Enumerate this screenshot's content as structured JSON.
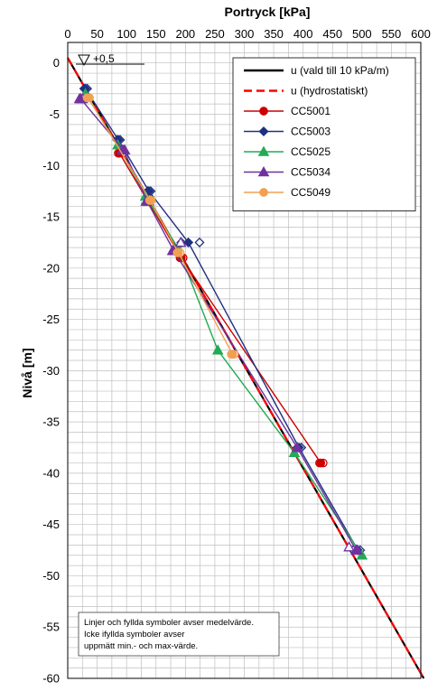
{
  "chart_data": {
    "type": "scatter",
    "title": "Portryck [kPa]",
    "xlabel": "Portryck [kPa]",
    "ylabel": "Nivå [m]",
    "xlim": [
      0,
      600
    ],
    "ylim": [
      -60,
      2
    ],
    "x_ticks": [
      0,
      50,
      100,
      150,
      200,
      250,
      300,
      350,
      400,
      450,
      500,
      550,
      600
    ],
    "y_ticks": [
      0,
      -5,
      -10,
      -15,
      -20,
      -25,
      -30,
      -35,
      -40,
      -45,
      -50,
      -55,
      -60
    ],
    "x_axis_position": "top",
    "grid": true,
    "legend_position": "top-right",
    "water_level_label": "+0,5",
    "note_lines": [
      "Linjer och fyllda symboler avser medelvärde.",
      "Icke ifyllda symboler avser",
      "uppmätt min.- och max-värde."
    ],
    "series": [
      {
        "name": "u (vald till 10 kPa/m)",
        "style": "solid",
        "color": "#000000",
        "marker": "none",
        "points": [
          [
            0,
            0.5
          ],
          [
            605,
            -60
          ]
        ]
      },
      {
        "name": "u (hydrostatiskt)",
        "style": "dashed",
        "color": "#ff0000",
        "marker": "none",
        "points": [
          [
            0,
            0.5
          ],
          [
            605,
            -60
          ]
        ]
      },
      {
        "name": "CC5001",
        "style": "solid",
        "color": "#cc0000",
        "marker": "circle",
        "points": [
          [
            88,
            -8.8
          ],
          [
            193,
            -19
          ],
          [
            430,
            -39
          ]
        ],
        "minmax": [
          [
            86,
            -8.8
          ],
          [
            93,
            -8.8
          ],
          [
            191,
            -19
          ],
          [
            196,
            -19
          ],
          [
            428,
            -39
          ],
          [
            434,
            -39
          ]
        ]
      },
      {
        "name": "CC5003",
        "style": "solid",
        "color": "#1f3080",
        "marker": "diamond",
        "points": [
          [
            30,
            -2.5
          ],
          [
            86,
            -7.5
          ],
          [
            138,
            -12.5
          ],
          [
            205,
            -17.5
          ],
          [
            393,
            -37.5
          ],
          [
            493,
            -47.5
          ]
        ],
        "minmax": [
          [
            28,
            -2.5
          ],
          [
            33,
            -2.5
          ],
          [
            84,
            -7.5
          ],
          [
            89,
            -7.5
          ],
          [
            136,
            -12.5
          ],
          [
            141,
            -12.5
          ],
          [
            193,
            -17.5
          ],
          [
            224,
            -17.5
          ],
          [
            390,
            -37.5
          ],
          [
            397,
            -37.5
          ],
          [
            485,
            -47.5
          ],
          [
            497,
            -47.5
          ]
        ]
      },
      {
        "name": "CC5025",
        "style": "solid",
        "color": "#22aa55",
        "marker": "triangle",
        "points": [
          [
            30,
            -3
          ],
          [
            85,
            -8
          ],
          [
            132,
            -13
          ],
          [
            187,
            -18
          ],
          [
            255,
            -28
          ],
          [
            385,
            -38
          ],
          [
            500,
            -48
          ]
        ],
        "minmax": []
      },
      {
        "name": "CC5034",
        "style": "solid",
        "color": "#7030a0",
        "marker": "triangle",
        "points": [
          [
            22,
            -3.5
          ],
          [
            95,
            -8.5
          ],
          [
            135,
            -13.5
          ],
          [
            180,
            -18.3
          ],
          [
            390,
            -37.5
          ],
          [
            490,
            -47.5
          ]
        ],
        "minmax": [
          [
            20,
            -3.5
          ],
          [
            25,
            -3.5
          ],
          [
            93,
            -8.5
          ],
          [
            97,
            -8.5
          ],
          [
            133,
            -13.5
          ],
          [
            138,
            -13.5
          ],
          [
            178,
            -18.3
          ],
          [
            192,
            -17.5
          ],
          [
            478,
            -47.2
          ],
          [
            492,
            -47.5
          ]
        ]
      },
      {
        "name": "CC5049",
        "style": "solid",
        "color": "#f0a050",
        "marker": "circle",
        "points": [
          [
            35,
            -3.4
          ],
          [
            140,
            -13.4
          ],
          [
            188,
            -18.5
          ],
          [
            280,
            -28.4
          ]
        ],
        "minmax": [
          [
            33,
            -3.4
          ],
          [
            37,
            -3.4
          ],
          [
            139,
            -13.4
          ],
          [
            142,
            -13.4
          ],
          [
            186,
            -18.5
          ],
          [
            191,
            -18.5
          ],
          [
            278,
            -28.4
          ],
          [
            283,
            -28.4
          ]
        ]
      }
    ]
  }
}
